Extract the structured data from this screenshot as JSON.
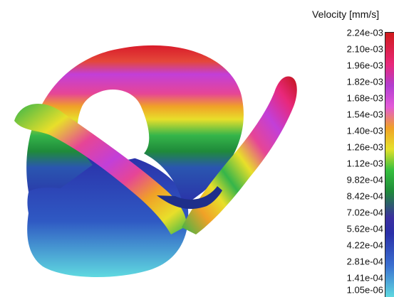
{
  "legend": {
    "title": "Velocity [mm/s]",
    "ticks": [
      "2.24e-03",
      "2.10e-03",
      "1.96e-03",
      "1.82e-03",
      "1.68e-03",
      "1.54e-03",
      "1.40e-03",
      "1.26e-03",
      "1.12e-03",
      "9.82e-04",
      "8.42e-04",
      "7.02e-04",
      "5.62e-04",
      "4.22e-04",
      "2.81e-04",
      "1.41e-04",
      "1.05e-06"
    ],
    "colormap_stops": [
      "#5fd9e0",
      "#3a6fd0",
      "#2a2fa8",
      "#1f8a3a",
      "#36c03e",
      "#e6e12a",
      "#f0a127",
      "#e35ad8",
      "#b23ed0",
      "#e8287a",
      "#cf1a1a"
    ]
  },
  "figure": {
    "subject": "inner-ear-labyrinth",
    "structure_colors": {
      "vestibule": "#2a2fa8",
      "vestibule-bottom": "#5fd9e0",
      "canal-band-red": "#e03a3a",
      "canal-band-magenta": "#c23fd8",
      "canal-band-yellow": "#e8df2a",
      "canal-band-green": "#35b54a"
    }
  }
}
